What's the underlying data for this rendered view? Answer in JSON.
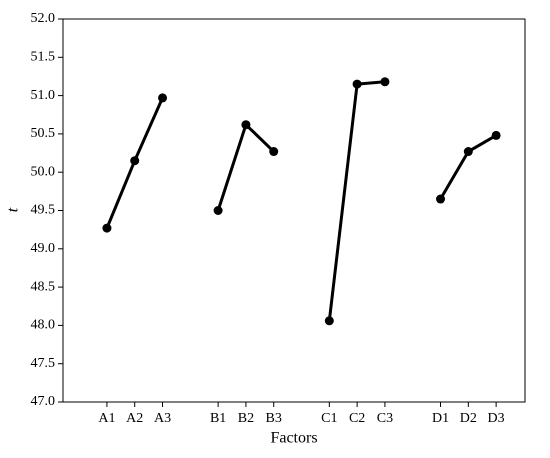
{
  "chart_data": {
    "type": "line",
    "x_label": "Factors",
    "y_label": "t",
    "categories": [
      "A1",
      "A2",
      "A3",
      null,
      "B1",
      "B2",
      "B3",
      null,
      "C1",
      "C2",
      "C3",
      null,
      "D1",
      "D2",
      "D3"
    ],
    "series": [
      {
        "color": "#000000",
        "values": [
          49.27,
          50.15,
          50.97,
          null,
          49.5,
          50.62,
          50.27,
          null,
          48.06,
          51.15,
          51.18,
          null,
          49.65,
          50.27,
          50.48
        ]
      }
    ],
    "ylim": [
      47,
      52
    ],
    "yticks": [
      {
        "value": 47,
        "label": "47.0"
      },
      47.5,
      {
        "value": 48,
        "label": "48.0"
      },
      48.5,
      {
        "value": 49,
        "label": "49.0"
      },
      49.5,
      {
        "value": 50,
        "label": "50.0"
      },
      50.5,
      {
        "value": 51,
        "label": "51.0"
      },
      51.5,
      {
        "value": 52,
        "label": "52.0"
      }
    ],
    "grid": false
  }
}
